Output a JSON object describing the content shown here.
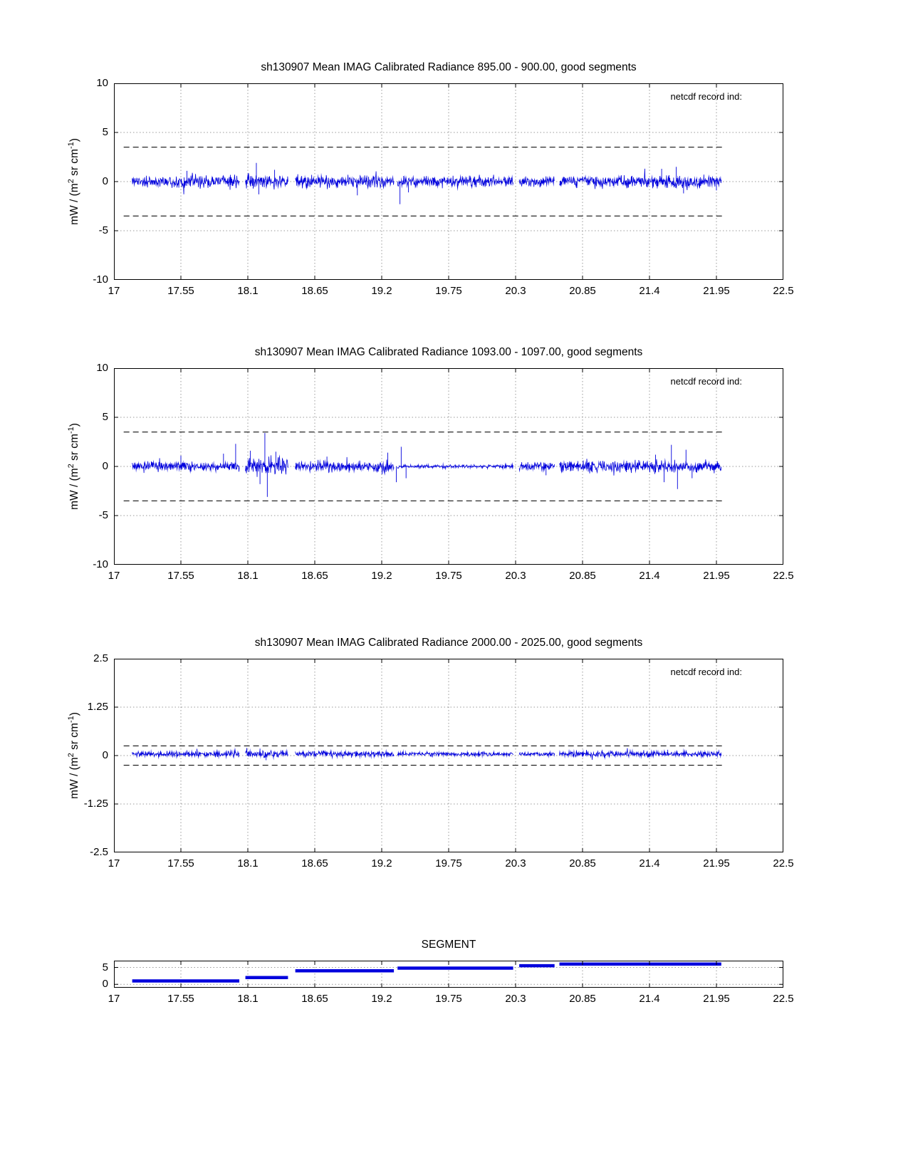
{
  "page": {
    "background": "#ffffff"
  },
  "chart_data": [
    {
      "type": "line",
      "title": "sh130907 Mean IMAG Calibrated Radiance 895.00 - 900.00, good segments",
      "ylabel": "mW / (m^2 sr cm^-1)",
      "annotation": "netcdf record ind:",
      "line_color": "#0000dd",
      "xlim": [
        17,
        22.5
      ],
      "ylim": [
        -10,
        10
      ],
      "xtick_labels": [
        "17",
        "17.55",
        "18.1",
        "18.65",
        "19.2",
        "19.75",
        "20.3",
        "20.85",
        "21.4",
        "21.95",
        "22.5"
      ],
      "ytick_labels": [
        "-10",
        "-5",
        "0",
        "5",
        "10"
      ],
      "grid": "dotted",
      "threshold": {
        "style": "dashed",
        "values": [
          3.5,
          -3.5
        ],
        "x0": 17.08,
        "x1": 22.0
      },
      "segments": [
        {
          "x0": 17.15,
          "x1": 18.03,
          "amp": 0.42,
          "offset": 0
        },
        {
          "x0": 18.08,
          "x1": 18.43,
          "amp": 0.5,
          "offset": 0
        },
        {
          "x0": 18.49,
          "x1": 19.3,
          "amp": 0.45,
          "offset": 0
        },
        {
          "x0": 19.33,
          "x1": 20.28,
          "amp": 0.38,
          "offset": 0
        },
        {
          "x0": 20.33,
          "x1": 20.62,
          "amp": 0.4,
          "offset": 0
        },
        {
          "x0": 20.66,
          "x1": 21.99,
          "amp": 0.42,
          "offset": 0
        }
      ],
      "spikes": [
        {
          "x": 17.6,
          "v": 1.1
        },
        {
          "x": 18.17,
          "v": 1.9
        },
        {
          "x": 18.19,
          "v": -1.3
        },
        {
          "x": 18.32,
          "v": 1.2
        },
        {
          "x": 19.0,
          "v": -1.4
        },
        {
          "x": 19.35,
          "v": -2.3
        },
        {
          "x": 19.42,
          "v": -1.1
        },
        {
          "x": 21.5,
          "v": 1.3
        },
        {
          "x": 21.62,
          "v": 1.5
        },
        {
          "x": 21.68,
          "v": -1.2
        },
        {
          "x": 21.95,
          "v": -0.9
        }
      ]
    },
    {
      "type": "line",
      "title": "sh130907 Mean IMAG Calibrated Radiance 1093.00 - 1097.00, good segments",
      "ylabel": "mW / (m^2 sr cm^-1)",
      "annotation": "netcdf record ind:",
      "line_color": "#0000dd",
      "xlim": [
        17,
        22.5
      ],
      "ylim": [
        -10,
        10
      ],
      "xtick_labels": [
        "17",
        "17.55",
        "18.1",
        "18.65",
        "19.2",
        "19.75",
        "20.3",
        "20.85",
        "21.4",
        "21.95",
        "22.5"
      ],
      "ytick_labels": [
        "-10",
        "-5",
        "0",
        "5",
        "10"
      ],
      "grid": "dotted",
      "threshold": {
        "style": "dashed",
        "values": [
          3.5,
          -3.5
        ],
        "x0": 17.08,
        "x1": 22.0
      },
      "segments": [
        {
          "x0": 17.15,
          "x1": 18.03,
          "amp": 0.32,
          "offset": 0
        },
        {
          "x0": 18.08,
          "x1": 18.43,
          "amp": 0.65,
          "offset": 0
        },
        {
          "x0": 18.49,
          "x1": 19.3,
          "amp": 0.38,
          "offset": 0
        },
        {
          "x0": 19.33,
          "x1": 20.28,
          "amp": 0.13,
          "offset": 0
        },
        {
          "x0": 20.33,
          "x1": 20.62,
          "amp": 0.28,
          "offset": 0
        },
        {
          "x0": 20.66,
          "x1": 21.99,
          "amp": 0.42,
          "offset": 0
        }
      ],
      "spikes": [
        {
          "x": 17.55,
          "v": 1.1
        },
        {
          "x": 17.9,
          "v": 1.3
        },
        {
          "x": 18.0,
          "v": 2.3
        },
        {
          "x": 18.12,
          "v": 1.6
        },
        {
          "x": 18.2,
          "v": -1.8
        },
        {
          "x": 18.24,
          "v": 3.4
        },
        {
          "x": 18.26,
          "v": -3.1
        },
        {
          "x": 18.33,
          "v": 1.5
        },
        {
          "x": 18.75,
          "v": 1.0
        },
        {
          "x": 19.25,
          "v": 1.4
        },
        {
          "x": 19.32,
          "v": -1.6
        },
        {
          "x": 19.36,
          "v": 2.0
        },
        {
          "x": 19.4,
          "v": -1.2
        },
        {
          "x": 20.55,
          "v": -0.9
        },
        {
          "x": 21.45,
          "v": 1.2
        },
        {
          "x": 21.52,
          "v": -1.6
        },
        {
          "x": 21.58,
          "v": 2.2
        },
        {
          "x": 21.63,
          "v": -2.3
        },
        {
          "x": 21.7,
          "v": 1.7
        },
        {
          "x": 21.75,
          "v": -1.2
        }
      ]
    },
    {
      "type": "line",
      "title": "sh130907 Mean IMAG Calibrated Radiance 2000.00 - 2025.00, good segments",
      "ylabel": "mW / (m^2 sr cm^-1)",
      "annotation": "netcdf record ind:",
      "line_color": "#0000dd",
      "xlim": [
        17,
        22.5
      ],
      "ylim": [
        -2.5,
        2.5
      ],
      "xtick_labels": [
        "17",
        "17.55",
        "18.1",
        "18.65",
        "19.2",
        "19.75",
        "20.3",
        "20.85",
        "21.4",
        "21.95",
        "22.5"
      ],
      "ytick_labels": [
        "-2.5",
        "-1.25",
        "0",
        "1.25",
        "2.5"
      ],
      "grid": "dotted",
      "threshold": {
        "style": "dashed",
        "values": [
          0.25,
          -0.25
        ],
        "x0": 17.08,
        "x1": 22.0
      },
      "segments": [
        {
          "x0": 17.15,
          "x1": 18.03,
          "amp": 0.055,
          "offset": 0.04
        },
        {
          "x0": 18.08,
          "x1": 18.43,
          "amp": 0.06,
          "offset": 0.04
        },
        {
          "x0": 18.49,
          "x1": 19.3,
          "amp": 0.05,
          "offset": 0.04
        },
        {
          "x0": 19.33,
          "x1": 20.28,
          "amp": 0.035,
          "offset": 0.04
        },
        {
          "x0": 20.33,
          "x1": 20.62,
          "amp": 0.04,
          "offset": 0.04
        },
        {
          "x0": 20.66,
          "x1": 21.99,
          "amp": 0.05,
          "offset": 0.04
        }
      ],
      "spikes": [
        {
          "x": 18.2,
          "v": 0.18
        },
        {
          "x": 18.25,
          "v": -0.12
        },
        {
          "x": 21.55,
          "v": 0.15
        }
      ]
    },
    {
      "type": "step",
      "title": "SEGMENT",
      "line_color": "#0000dd",
      "xlim": [
        17,
        22.5
      ],
      "ylim": [
        -1,
        7
      ],
      "xtick_labels": [
        "17",
        "17.55",
        "18.1",
        "18.65",
        "19.2",
        "19.75",
        "20.3",
        "20.85",
        "21.4",
        "21.95",
        "22.5"
      ],
      "ytick_labels": [
        "0",
        "5"
      ],
      "grid": "dotted",
      "steps": [
        {
          "x0": 17.15,
          "x1": 18.03,
          "value": 1
        },
        {
          "x0": 18.08,
          "x1": 18.43,
          "value": 2
        },
        {
          "x0": 18.49,
          "x1": 19.3,
          "value": 4
        },
        {
          "x0": 19.33,
          "x1": 20.28,
          "value": 4.8
        },
        {
          "x0": 20.33,
          "x1": 20.62,
          "value": 5.5
        },
        {
          "x0": 20.66,
          "x1": 21.99,
          "value": 6
        }
      ]
    }
  ]
}
